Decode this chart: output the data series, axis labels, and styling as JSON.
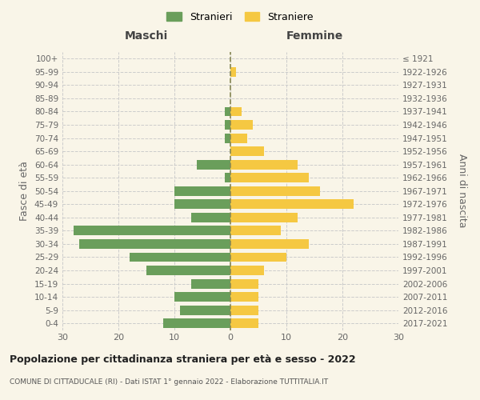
{
  "age_groups": [
    "0-4",
    "5-9",
    "10-14",
    "15-19",
    "20-24",
    "25-29",
    "30-34",
    "35-39",
    "40-44",
    "45-49",
    "50-54",
    "55-59",
    "60-64",
    "65-69",
    "70-74",
    "75-79",
    "80-84",
    "85-89",
    "90-94",
    "95-99",
    "100+"
  ],
  "birth_years": [
    "2017-2021",
    "2012-2016",
    "2007-2011",
    "2002-2006",
    "1997-2001",
    "1992-1996",
    "1987-1991",
    "1982-1986",
    "1977-1981",
    "1972-1976",
    "1967-1971",
    "1962-1966",
    "1957-1961",
    "1952-1956",
    "1947-1951",
    "1942-1946",
    "1937-1941",
    "1932-1936",
    "1927-1931",
    "1922-1926",
    "≤ 1921"
  ],
  "maschi": [
    12,
    9,
    10,
    7,
    15,
    18,
    27,
    28,
    7,
    10,
    10,
    1,
    6,
    0,
    1,
    1,
    1,
    0,
    0,
    0,
    0
  ],
  "femmine": [
    5,
    5,
    5,
    5,
    6,
    10,
    14,
    9,
    12,
    22,
    16,
    14,
    12,
    6,
    3,
    4,
    2,
    0,
    0,
    1,
    0
  ],
  "color_maschi": "#6a9e5b",
  "color_femmine": "#f5c842",
  "bg_color": "#f9f5e8",
  "grid_color": "#cccccc",
  "title": "Popolazione per cittadinanza straniera per età e sesso - 2022",
  "subtitle": "COMUNE DI CITTADUCALE (RI) - Dati ISTAT 1° gennaio 2022 - Elaborazione TUTTITALIA.IT",
  "ylabel_left": "Fasce di età",
  "ylabel_right": "Anni di nascita",
  "header_maschi": "Maschi",
  "header_femmine": "Femmine",
  "legend_maschi": "Stranieri",
  "legend_femmine": "Straniere",
  "xlim": 30,
  "bar_height": 0.72
}
